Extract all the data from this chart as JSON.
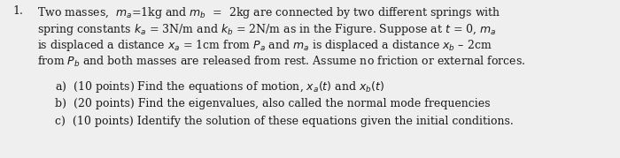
{
  "background_color": "#efefef",
  "text_color": "#1a1a1a",
  "main_number": "1.",
  "line1": "Two masses,  $m_a$=1kg and $m_b$  =  2kg are connected by two different springs with",
  "line2": "spring constants $k_a$ = 3N/m and $k_b$ = 2N/m as in the Figure. Suppose at $t$ = 0, $m_a$",
  "line3": "is displaced a distance $x_a$ = 1cm from $P_a$ and $m_a$ is displaced a distance $x_b$ – 2cm",
  "line4": "from $P_b$ and both masses are released from rest. Assume no friction or external forces.",
  "item_a": "a)  (10 points) Find the equations of motion, $x_a(t)$ and $x_b(t)$",
  "item_b": "b)  (20 points) Find the eigenvalues, also called the normal mode frequencies",
  "item_c": "c)  (10 points) Identify the solution of these equations given the initial conditions.",
  "font_size": 9.0,
  "fig_width": 7.0,
  "fig_height": 1.79
}
